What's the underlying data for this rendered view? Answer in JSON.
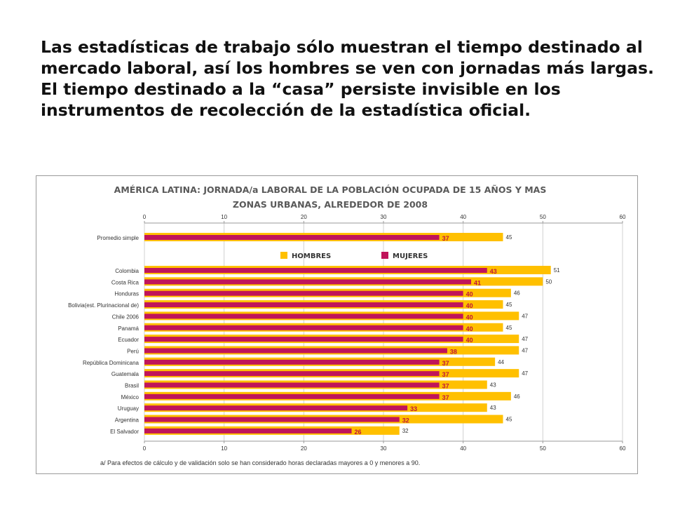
{
  "headline": {
    "paragraph1": "Las estadísticas de trabajo sólo muestran el tiempo destinado al mercado laboral, así los hombres se ven con jornadas más largas.",
    "paragraph2": "El tiempo destinado a la “casa” persiste invisible en los instrumentos de recolección de la estadística oficial."
  },
  "chart_data": {
    "type": "bar",
    "orientation": "horizontal",
    "title_line1": "AMÉRICA LATINA: JORNADA/a LABORAL DE LA POBLACIÓN OCUPADA DE 15 AÑOS Y MAS",
    "title_line2": "ZONAS URBANAS, ALREDEDOR DE 2008",
    "categories": [
      "Promedio simple",
      "Colombia",
      "Costa Rica",
      "Honduras",
      "Bolivia(est. Plurinacional de)",
      "Chile 2006",
      "Panamá",
      "Ecuador",
      "Perú",
      "República Dominicana",
      "Guatemala",
      "Brasil",
      "México",
      "Uruguay",
      "Argentina",
      "El Salvador"
    ],
    "series": [
      {
        "name": "HOMBRES",
        "color": "#ffc000",
        "values": [
          45,
          51,
          50,
          46,
          45,
          47,
          45,
          47,
          47,
          44,
          47,
          43,
          46,
          43,
          45,
          32
        ]
      },
      {
        "name": "MUJERES",
        "color": "#c0145a",
        "values": [
          37,
          43,
          41,
          40,
          40,
          40,
          40,
          40,
          38,
          37,
          37,
          37,
          37,
          33,
          32,
          26
        ]
      }
    ],
    "xlim": [
      0,
      60
    ],
    "xticks": [
      "0",
      "10",
      "20",
      "30",
      "40",
      "50",
      "60"
    ],
    "legend_position": "top-center",
    "footnote": "a/ Para efectos de cálculo y de validación solo se han considerado horas declaradas mayores a 0 y menores a 90."
  }
}
